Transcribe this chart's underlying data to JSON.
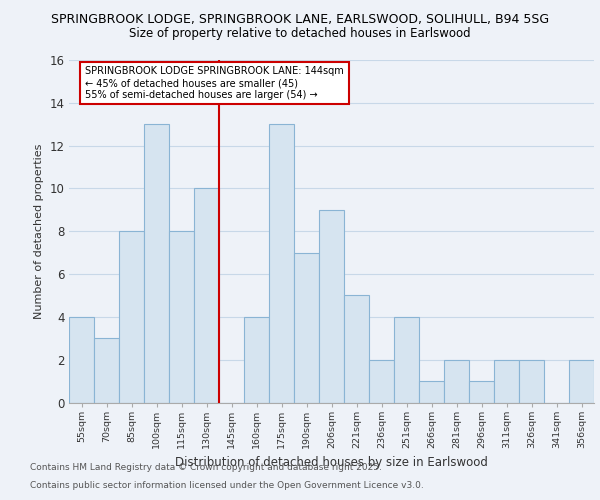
{
  "title_line1": "SPRINGBROOK LODGE, SPRINGBROOK LANE, EARLSWOOD, SOLIHULL, B94 5SG",
  "title_line2": "Size of property relative to detached houses in Earlswood",
  "xlabel": "Distribution of detached houses by size in Earlswood",
  "ylabel": "Number of detached properties",
  "footnote1": "Contains HM Land Registry data © Crown copyright and database right 2025.",
  "footnote2": "Contains public sector information licensed under the Open Government Licence v3.0.",
  "bar_labels": [
    "55sqm",
    "70sqm",
    "85sqm",
    "100sqm",
    "115sqm",
    "130sqm",
    "145sqm",
    "160sqm",
    "175sqm",
    "190sqm",
    "206sqm",
    "221sqm",
    "236sqm",
    "251sqm",
    "266sqm",
    "281sqm",
    "296sqm",
    "311sqm",
    "326sqm",
    "341sqm",
    "356sqm"
  ],
  "bar_values": [
    4,
    3,
    8,
    13,
    8,
    10,
    0,
    4,
    13,
    7,
    9,
    5,
    2,
    4,
    1,
    2,
    1,
    2,
    2,
    0,
    2
  ],
  "bar_color": "#d6e4f0",
  "bar_edge_color": "#8ab4d4",
  "vline_color": "#cc0000",
  "annotation_title": "SPRINGBROOK LODGE SPRINGBROOK LANE: 144sqm",
  "annotation_line2": "← 45% of detached houses are smaller (45)",
  "annotation_line3": "55% of semi-detached houses are larger (54) →",
  "annotation_box_color": "#ffffff",
  "annotation_box_edge": "#cc0000",
  "ylim": [
    0,
    16
  ],
  "yticks": [
    0,
    2,
    4,
    6,
    8,
    10,
    12,
    14,
    16
  ],
  "background_color": "#eef2f8",
  "grid_color": "#c8d8e8",
  "title_fontsize": 9,
  "subtitle_fontsize": 8.5
}
